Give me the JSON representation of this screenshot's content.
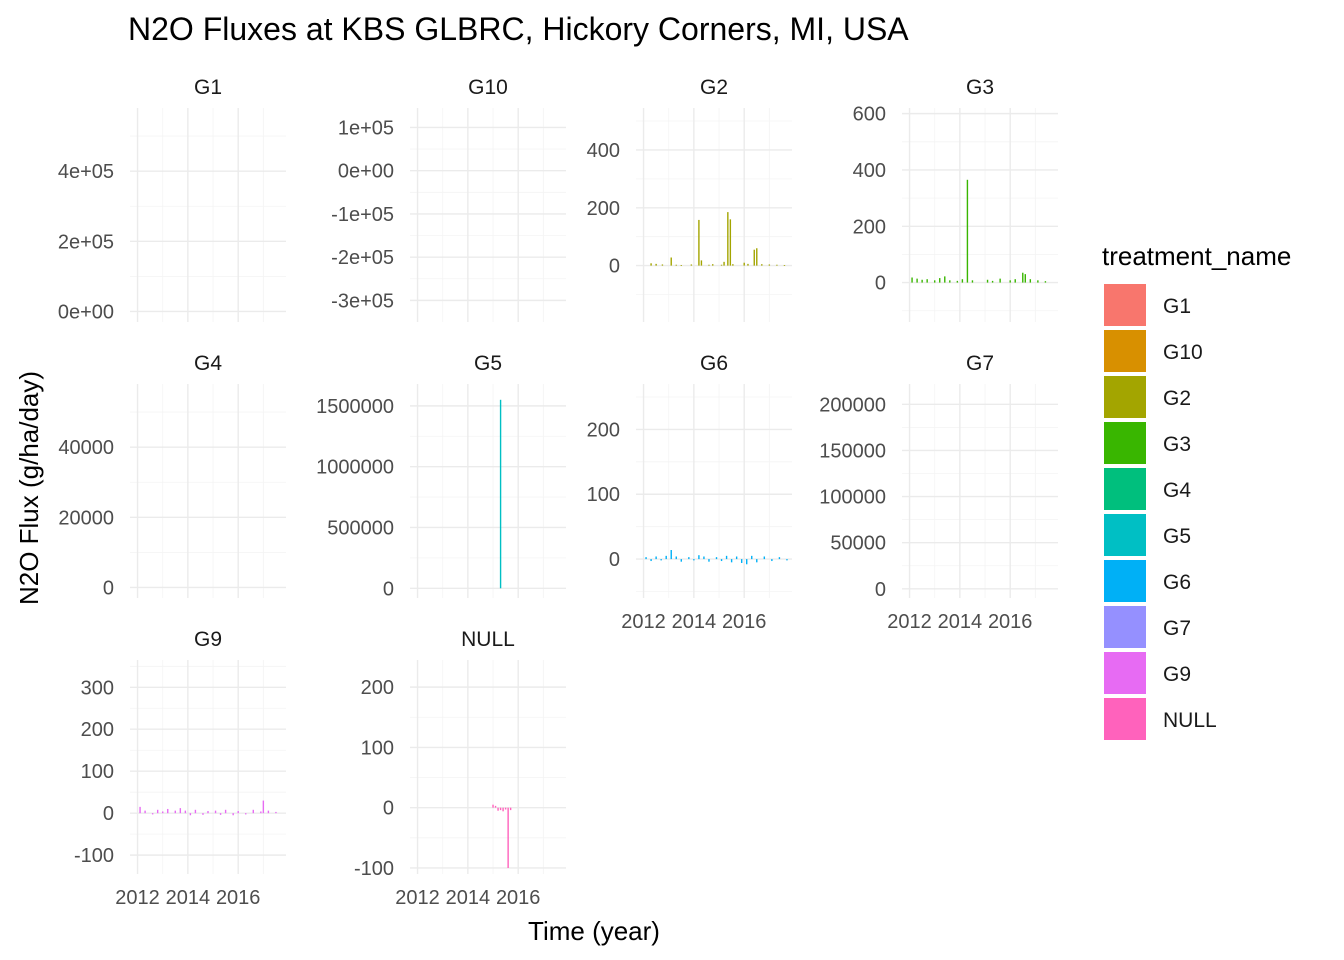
{
  "chart_data": {
    "type": "bar",
    "title": "N2O Fluxes at KBS GLBRC, Hickory Corners, MI, USA",
    "xlabel": "Time (year)",
    "ylabel": "N2O Flux (g/ha/day)",
    "x_ticks": [
      2012,
      2014,
      2016
    ],
    "x_tick_labels": [
      "2012",
      "2014",
      "2016"
    ],
    "xlim": [
      2011.7,
      2017.9
    ],
    "legend": {
      "title": "treatment_name",
      "position": "right",
      "entries": [
        {
          "label": "G1",
          "color": "#F8766D"
        },
        {
          "label": "G10",
          "color": "#D89000"
        },
        {
          "label": "G2",
          "color": "#A3A500"
        },
        {
          "label": "G3",
          "color": "#39B600"
        },
        {
          "label": "G4",
          "color": "#00BF7D"
        },
        {
          "label": "G5",
          "color": "#00BFC4"
        },
        {
          "label": "G6",
          "color": "#00B0F6"
        },
        {
          "label": "G7",
          "color": "#9590FF"
        },
        {
          "label": "G9",
          "color": "#E76BF3"
        },
        {
          "label": "NULL",
          "color": "#FF62BC"
        }
      ]
    },
    "grid": true,
    "panels": [
      {
        "name": "G1",
        "color": "#F8766D",
        "ylim": [
          -30000,
          580000
        ],
        "y_ticks": [
          0,
          200000,
          400000
        ],
        "y_tick_labels": [
          "0e+00",
          "2e+05",
          "4e+05"
        ],
        "show_x_labels": false,
        "bars": []
      },
      {
        "name": "G10",
        "color": "#D89000",
        "ylim": [
          -350000,
          145000
        ],
        "y_ticks": [
          -300000,
          -200000,
          -100000,
          0,
          100000
        ],
        "y_tick_labels": [
          "-3e+05",
          "-2e+05",
          "-1e+05",
          "0e+00",
          "1e+05"
        ],
        "show_x_labels": false,
        "bars": []
      },
      {
        "name": "G2",
        "color": "#A3A500",
        "ylim": [
          -195,
          545
        ],
        "y_ticks": [
          0,
          200,
          400
        ],
        "y_tick_labels": [
          "0",
          "200",
          "400"
        ],
        "show_x_labels": false,
        "bars": [
          [
            2012.3,
            8
          ],
          [
            2012.5,
            6
          ],
          [
            2012.75,
            4
          ],
          [
            2013.1,
            28
          ],
          [
            2013.3,
            3
          ],
          [
            2013.5,
            2
          ],
          [
            2013.9,
            4
          ],
          [
            2014.2,
            158
          ],
          [
            2014.3,
            18
          ],
          [
            2014.6,
            3
          ],
          [
            2014.75,
            5
          ],
          [
            2015.1,
            3
          ],
          [
            2015.2,
            13
          ],
          [
            2015.35,
            185
          ],
          [
            2015.45,
            160
          ],
          [
            2015.55,
            5
          ],
          [
            2016.0,
            10
          ],
          [
            2016.15,
            6
          ],
          [
            2016.4,
            55
          ],
          [
            2016.5,
            60
          ],
          [
            2016.7,
            5
          ],
          [
            2017.0,
            4
          ],
          [
            2017.3,
            3
          ],
          [
            2017.6,
            2
          ]
        ]
      },
      {
        "name": "G3",
        "color": "#39B600",
        "ylim": [
          -140,
          620
        ],
        "y_ticks": [
          0,
          200,
          400,
          600
        ],
        "y_tick_labels": [
          "0",
          "200",
          "400",
          "600"
        ],
        "show_x_labels": false,
        "bars": [
          [
            2012.1,
            18
          ],
          [
            2012.3,
            14
          ],
          [
            2012.5,
            10
          ],
          [
            2012.7,
            12
          ],
          [
            2013.0,
            8
          ],
          [
            2013.2,
            16
          ],
          [
            2013.4,
            22
          ],
          [
            2013.6,
            8
          ],
          [
            2013.9,
            6
          ],
          [
            2014.1,
            12
          ],
          [
            2014.3,
            365
          ],
          [
            2014.5,
            8
          ],
          [
            2015.1,
            10
          ],
          [
            2015.3,
            6
          ],
          [
            2015.6,
            14
          ],
          [
            2016.0,
            8
          ],
          [
            2016.2,
            12
          ],
          [
            2016.5,
            35
          ],
          [
            2016.6,
            30
          ],
          [
            2016.8,
            12
          ],
          [
            2017.1,
            8
          ],
          [
            2017.4,
            5
          ]
        ]
      },
      {
        "name": "G4",
        "color": "#00BF7D",
        "ylim": [
          -3000,
          58000
        ],
        "y_ticks": [
          0,
          20000,
          40000
        ],
        "y_tick_labels": [
          "0",
          "20000",
          "40000"
        ],
        "show_x_labels": false,
        "bars": []
      },
      {
        "name": "G5",
        "color": "#00BFC4",
        "ylim": [
          -80000,
          1680000
        ],
        "y_ticks": [
          0,
          500000,
          1000000,
          1500000
        ],
        "y_tick_labels": [
          "0",
          "500000",
          "1000000",
          "1500000"
        ],
        "show_x_labels": false,
        "bars": [
          [
            2015.3,
            1550000
          ]
        ]
      },
      {
        "name": "G6",
        "color": "#00B0F6",
        "ylim": [
          -60,
          270
        ],
        "y_ticks": [
          0,
          100,
          200
        ],
        "y_tick_labels": [
          "0",
          "100",
          "200"
        ],
        "show_x_labels": true,
        "bars": [
          [
            2012.1,
            3
          ],
          [
            2012.3,
            -3
          ],
          [
            2012.5,
            4
          ],
          [
            2012.7,
            -2
          ],
          [
            2012.9,
            5
          ],
          [
            2013.1,
            14
          ],
          [
            2013.3,
            4
          ],
          [
            2013.5,
            -4
          ],
          [
            2013.8,
            3
          ],
          [
            2014.0,
            -2
          ],
          [
            2014.2,
            6
          ],
          [
            2014.4,
            4
          ],
          [
            2014.6,
            -4
          ],
          [
            2014.9,
            3
          ],
          [
            2015.1,
            -3
          ],
          [
            2015.3,
            5
          ],
          [
            2015.5,
            -5
          ],
          [
            2015.7,
            4
          ],
          [
            2015.9,
            -6
          ],
          [
            2016.1,
            -8
          ],
          [
            2016.3,
            5
          ],
          [
            2016.5,
            -5
          ],
          [
            2016.8,
            4
          ],
          [
            2017.1,
            -3
          ],
          [
            2017.4,
            3
          ],
          [
            2017.7,
            -2
          ]
        ]
      },
      {
        "name": "G7",
        "color": "#9590FF",
        "ylim": [
          -10000,
          222000
        ],
        "y_ticks": [
          0,
          50000,
          100000,
          150000,
          200000
        ],
        "y_tick_labels": [
          "0",
          "50000",
          "100000",
          "150000",
          "200000"
        ],
        "show_x_labels": true,
        "bars": []
      },
      {
        "name": "G9",
        "color": "#E76BF3",
        "ylim": [
          -145,
          365
        ],
        "y_ticks": [
          -100,
          0,
          100,
          200,
          300
        ],
        "y_tick_labels": [
          "-100",
          "0",
          "100",
          "200",
          "300"
        ],
        "show_x_labels": true,
        "bars": [
          [
            2012.1,
            15
          ],
          [
            2012.3,
            6
          ],
          [
            2012.6,
            -3
          ],
          [
            2012.8,
            8
          ],
          [
            2013.0,
            4
          ],
          [
            2013.2,
            10
          ],
          [
            2013.5,
            6
          ],
          [
            2013.7,
            12
          ],
          [
            2013.9,
            6
          ],
          [
            2014.1,
            -5
          ],
          [
            2014.3,
            8
          ],
          [
            2014.6,
            -4
          ],
          [
            2014.8,
            5
          ],
          [
            2015.1,
            6
          ],
          [
            2015.3,
            -4
          ],
          [
            2015.5,
            8
          ],
          [
            2015.8,
            -5
          ],
          [
            2016.0,
            5
          ],
          [
            2016.3,
            -3
          ],
          [
            2016.6,
            8
          ],
          [
            2016.9,
            4
          ],
          [
            2017.0,
            30
          ],
          [
            2017.2,
            6
          ],
          [
            2017.5,
            3
          ]
        ]
      },
      {
        "name": "NULL",
        "color": "#FF62BC",
        "ylim": [
          -110,
          245
        ],
        "y_ticks": [
          -100,
          0,
          100,
          200
        ],
        "y_tick_labels": [
          "-100",
          "0",
          "100",
          "200"
        ],
        "show_x_labels": true,
        "bars": [
          [
            2015.0,
            5
          ],
          [
            2015.1,
            3
          ],
          [
            2015.2,
            -5
          ],
          [
            2015.3,
            -4
          ],
          [
            2015.4,
            -6
          ],
          [
            2015.5,
            -3
          ],
          [
            2015.6,
            -100
          ],
          [
            2015.7,
            -4
          ]
        ]
      }
    ]
  }
}
